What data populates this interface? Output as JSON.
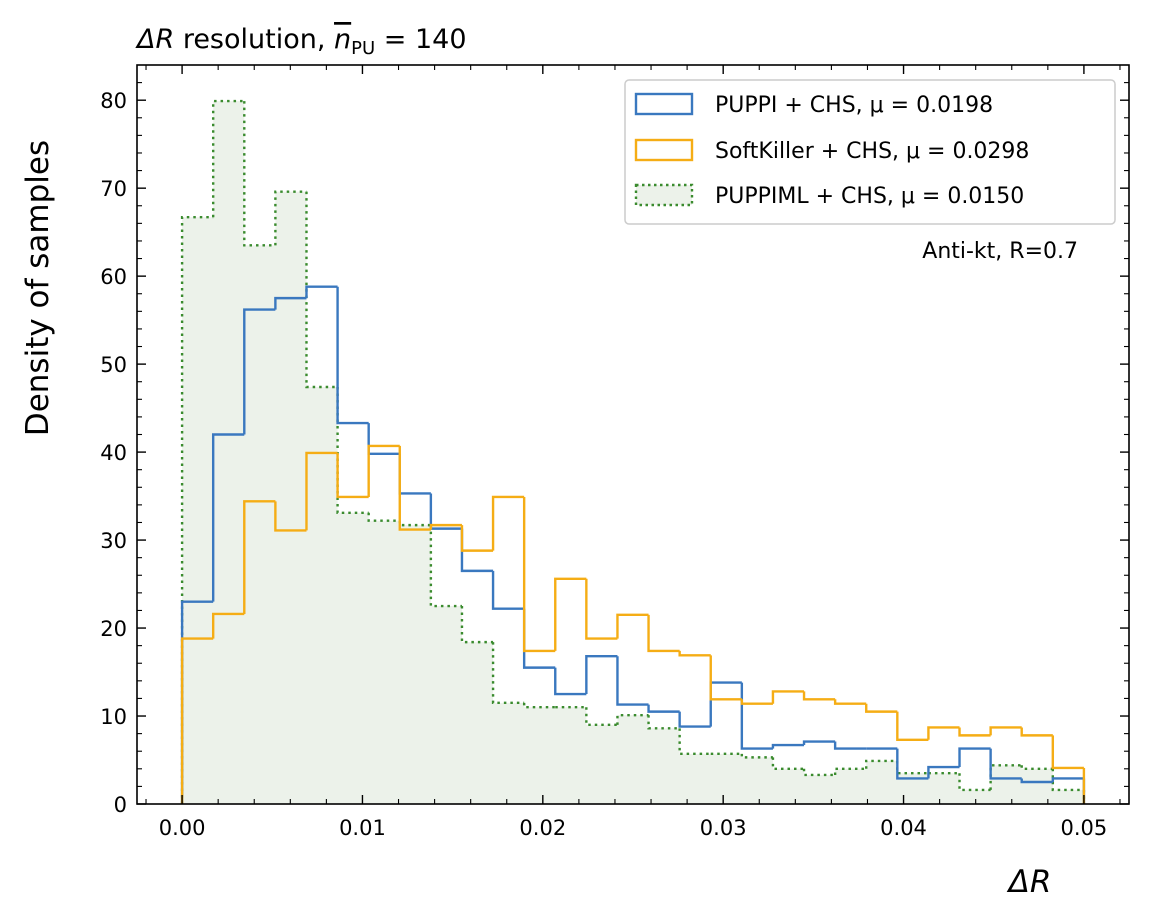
{
  "chart_data": {
    "type": "histogram",
    "title_prefix": "ΔR",
    "title_mid": " resolution, ",
    "title_n": "n",
    "title_sub": "PU",
    "title_suffix": " = 140",
    "xlabel": "ΔR",
    "ylabel": "Density of samples",
    "xlim": [
      -0.0025,
      0.0525
    ],
    "ylim": [
      0,
      84
    ],
    "xticks": [
      0.0,
      0.01,
      0.02,
      0.03,
      0.04,
      0.05
    ],
    "xtick_labels": [
      "0.00",
      "0.01",
      "0.02",
      "0.03",
      "0.04",
      "0.05"
    ],
    "yticks": [
      0,
      10,
      20,
      30,
      40,
      50,
      60,
      70,
      80
    ],
    "ytick_labels": [
      "0",
      "10",
      "20",
      "30",
      "40",
      "50",
      "60",
      "70",
      "80"
    ],
    "bin_edges": [
      0.0,
      0.0017241,
      0.0034483,
      0.0051724,
      0.0068966,
      0.0086207,
      0.0103448,
      0.012069,
      0.0137931,
      0.0155172,
      0.0172414,
      0.0189655,
      0.0206897,
      0.0224138,
      0.0241379,
      0.0258621,
      0.0275862,
      0.0293103,
      0.0310345,
      0.0327586,
      0.0344828,
      0.0362069,
      0.037931,
      0.0396552,
      0.0413793,
      0.0431034,
      0.0448276,
      0.0465517,
      0.0482759,
      0.05
    ],
    "series": [
      {
        "name": "PUPPI + CHS",
        "legend_label": "PUPPI + CHS, μ = 0.0198",
        "color": "#3a78bf",
        "style": "solid",
        "values": [
          23.0,
          42.0,
          56.2,
          57.5,
          58.8,
          43.3,
          39.8,
          35.3,
          31.3,
          26.5,
          22.2,
          15.5,
          12.5,
          16.8,
          11.3,
          10.5,
          8.8,
          13.8,
          6.3,
          6.7,
          7.1,
          6.3,
          6.3,
          2.9,
          4.2,
          6.3,
          2.9,
          2.5,
          2.9
        ]
      },
      {
        "name": "SoftKiller + CHS",
        "legend_label": "SoftKiller + CHS, μ = 0.0298",
        "color": "#f5ad15",
        "style": "solid",
        "values": [
          18.8,
          21.6,
          34.4,
          31.1,
          39.9,
          34.9,
          40.7,
          31.2,
          31.7,
          28.8,
          34.9,
          17.4,
          25.6,
          18.8,
          21.5,
          17.4,
          16.9,
          11.9,
          11.4,
          12.8,
          11.9,
          11.4,
          10.5,
          7.3,
          8.7,
          7.8,
          8.7,
          7.8,
          4.1
        ]
      },
      {
        "name": "PUPPIML + CHS",
        "legend_label": "PUPPIML + CHS, μ = 0.0150",
        "color": "#3a8b2e",
        "fill": "#ecf2ea",
        "style": "dotted",
        "values": [
          66.7,
          79.9,
          63.5,
          69.6,
          47.4,
          33.1,
          32.2,
          31.7,
          22.5,
          18.4,
          11.5,
          11.0,
          11.0,
          9.0,
          10.1,
          8.6,
          5.7,
          5.7,
          5.3,
          4.0,
          3.3,
          4.0,
          4.9,
          3.5,
          3.5,
          1.6,
          4.4,
          4.0,
          1.6
        ]
      }
    ],
    "annotation": "Anti-kt, R=0.7",
    "legend_location": "upper right"
  }
}
